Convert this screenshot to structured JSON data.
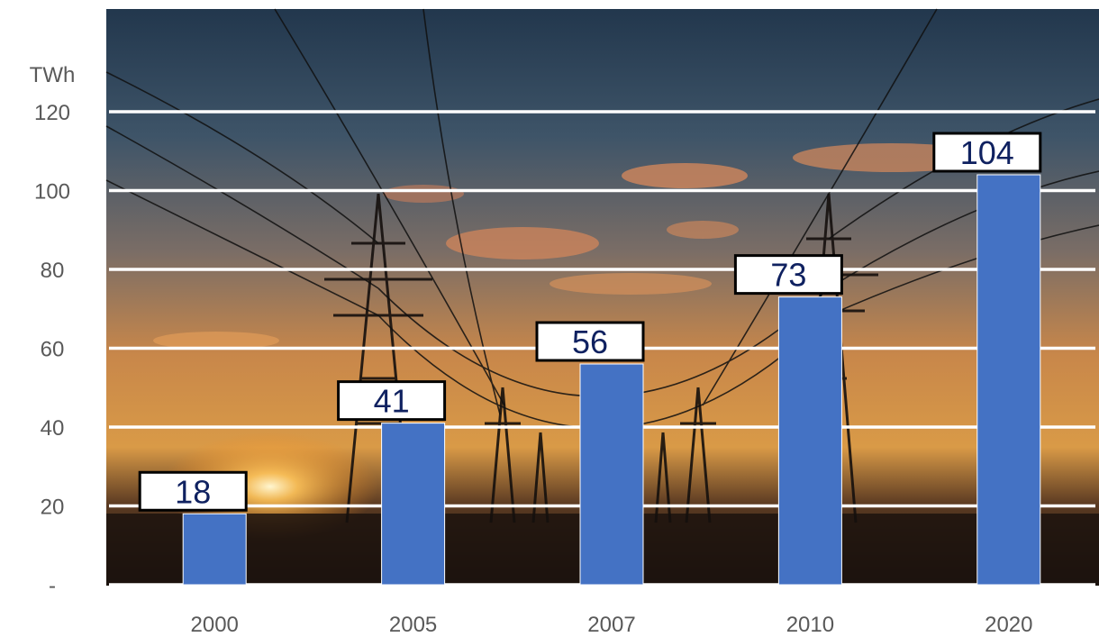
{
  "chart_data": {
    "type": "bar",
    "ylabel": "TWh",
    "categories": [
      "2000",
      "2005",
      "2007",
      "2010",
      "2020"
    ],
    "values": [
      18,
      41,
      56,
      73,
      104
    ],
    "data_labels": [
      "18",
      "41",
      "56",
      "73",
      "104"
    ],
    "y_ticks": [
      0,
      20,
      40,
      60,
      80,
      100,
      120
    ],
    "y_tick_labels": [
      "-",
      "20",
      "40",
      "60",
      "80",
      "100",
      "120"
    ],
    "ylim": [
      0,
      120
    ],
    "grid": true,
    "background": "sunset photograph with electricity pylons and power lines",
    "colors": {
      "bar": "#4472C4",
      "gridline": "#ffffff",
      "label_box": "#ffffff",
      "label_text": "#0f2160",
      "axis_text": "#595959"
    }
  }
}
